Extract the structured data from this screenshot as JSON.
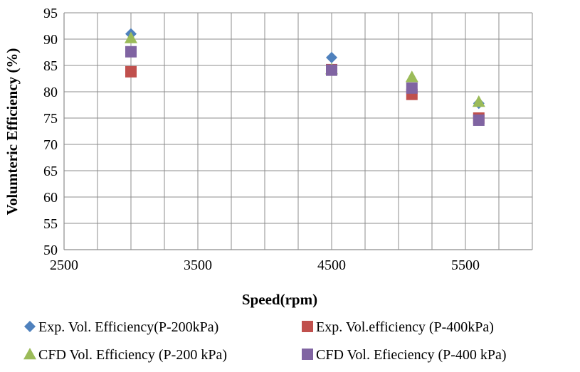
{
  "chart_data": {
    "type": "scatter",
    "title": "",
    "xlabel": "Speed(rpm)",
    "ylabel": "Volumteric Efficiency (%)",
    "xlim": [
      2500,
      6000
    ],
    "ylim": [
      50,
      95
    ],
    "xticks": [
      2500,
      3500,
      4500,
      5500
    ],
    "yticks": [
      50,
      55,
      60,
      65,
      70,
      75,
      80,
      85,
      90,
      95
    ],
    "grid": true,
    "legend_position": "bottom",
    "series": [
      {
        "name": "Exp. Vol. Efficiency(P-200kPa)",
        "marker": "diamond",
        "color": "#4F81BD",
        "x": [
          3000,
          4500,
          5100,
          5600
        ],
        "y": [
          91,
          86.5,
          80.5,
          77.8
        ]
      },
      {
        "name": "Exp. Vol.efficiency (P-400kPa)",
        "marker": "square",
        "color": "#C0504D",
        "x": [
          3000,
          4500,
          5100,
          5600
        ],
        "y": [
          83.8,
          84.2,
          79.5,
          75
        ]
      },
      {
        "name": "CFD Vol. Efficiency (P-200 kPa)",
        "marker": "triangle",
        "color": "#9BBB59",
        "x": [
          3000,
          4500,
          5100,
          5600
        ],
        "y": [
          90.2,
          84.3,
          82.8,
          78.1
        ]
      },
      {
        "name": "CFD Vol. Efieciency (P-400 kPa)",
        "marker": "square",
        "color": "#8064A2",
        "x": [
          3000,
          4500,
          5100,
          5600
        ],
        "y": [
          87.6,
          84.1,
          80.7,
          74.6
        ]
      }
    ]
  }
}
